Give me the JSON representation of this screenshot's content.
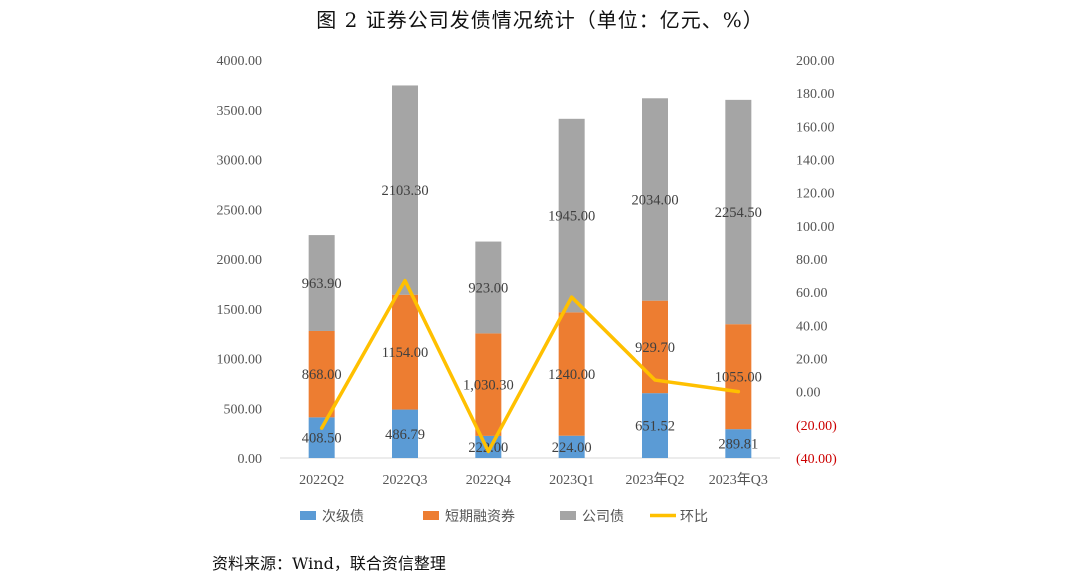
{
  "title": "图 2    证券公司发债情况统计（单位：亿元、%）",
  "source": "资料来源：Wind，联合资信整理",
  "colors": {
    "subordinated": "#5b9bd5",
    "short_term": "#ed7d31",
    "corporate": "#a5a5a5",
    "qoq": "#ffc000",
    "negative_tick": "#cc0000"
  },
  "chart_data": {
    "type": "bar",
    "stacked": true,
    "categories": [
      "2022Q2",
      "2022Q3",
      "2022Q4",
      "2023Q1",
      "2023年Q2",
      "2023年Q3"
    ],
    "series": [
      {
        "name": "次级债",
        "axis": "left",
        "values": [
          408.5,
          486.79,
          222.0,
          224.0,
          651.52,
          289.81
        ],
        "labels": [
          "408.50",
          "486.79",
          "222.00",
          "224.00",
          "651.52",
          "289.81"
        ]
      },
      {
        "name": "短期融资券",
        "axis": "left",
        "values": [
          868.0,
          1154.0,
          1030.3,
          1240.0,
          929.7,
          1055.0
        ],
        "labels": [
          "868.00",
          "1154.00",
          "1,030.30",
          "1240.00",
          "929.70",
          "1055.00"
        ]
      },
      {
        "name": "公司债",
        "axis": "left",
        "values": [
          963.9,
          2103.3,
          923.0,
          1945.0,
          2034.0,
          2254.5
        ],
        "labels": [
          "963.90",
          "2103.30",
          "923.00",
          "1945.00",
          "2034.00",
          "2254.50"
        ]
      },
      {
        "name": "环比",
        "type": "line",
        "axis": "right",
        "values": [
          -22.0,
          67.0,
          -36.0,
          57.0,
          7.0,
          0.0
        ]
      }
    ],
    "y_left": {
      "min": 0,
      "max": 4000,
      "step": 500,
      "ticks": [
        "0.00",
        "500.00",
        "1000.00",
        "1500.00",
        "2000.00",
        "2500.00",
        "3000.00",
        "3500.00",
        "4000.00"
      ]
    },
    "y_right": {
      "min": -40,
      "max": 200,
      "step": 20,
      "ticks": [
        "(40.00)",
        "(20.00)",
        "0.00",
        "20.00",
        "40.00",
        "60.00",
        "80.00",
        "100.00",
        "120.00",
        "140.00",
        "160.00",
        "180.00",
        "200.00"
      ]
    },
    "grid": false,
    "legend": "bottom"
  }
}
